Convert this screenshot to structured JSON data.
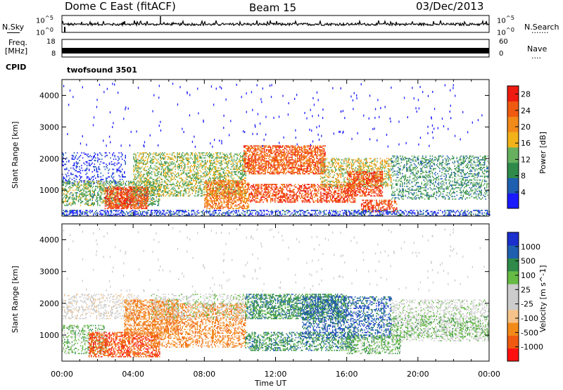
{
  "header": {
    "station": "Dome C East (fitACF)",
    "beam": "Beam 15",
    "date": "03/Dec/2013"
  },
  "strip": {
    "nsky_label": "N.Sky",
    "nsearch_label": "N.Search",
    "nsearch_dots": ".......",
    "freq_label_1": "Freq.",
    "freq_label_2": "[MHz]",
    "nave_label": "Nave",
    "nave_dots": "....",
    "cpid_label": "CPID",
    "cpid_value": "twofsound 3501",
    "noise_ticks_left": [
      "10^5",
      "10^0"
    ],
    "noise_ticks_right": [
      "10^5",
      "10^0"
    ],
    "freq_ticks": [
      "18",
      "8"
    ],
    "nave_ticks": [
      "60",
      "0"
    ]
  },
  "colors": {
    "power": [
      "#1a1aff",
      "#1f5fb0",
      "#2f8a4a",
      "#66b060",
      "#f2b21a",
      "#f28a1a",
      "#f05a10",
      "#ee1b10"
    ],
    "velocity": [
      "#ff1010",
      "#f05a10",
      "#f28a1a",
      "#f5c38a",
      "#cccccc",
      "#cccccc",
      "#66bb44",
      "#2f8a4a",
      "#1f5fb0",
      "#1a2fcc"
    ]
  },
  "chart_data": [
    {
      "type": "heatmap",
      "panel": "power",
      "xlabel": "",
      "ylabel": "Slant Range [km]",
      "ylim": [
        180,
        4500
      ],
      "xlim": [
        0,
        24
      ],
      "yticks": [
        "1000",
        "2000",
        "3000",
        "4000"
      ],
      "colorbar_label": "Power [dB]",
      "colorbar_ticks": [
        "4",
        "8",
        "12",
        "16",
        "20",
        "24",
        "28"
      ],
      "colorbar_range": [
        0,
        30
      ],
      "bands": [
        {
          "t0": 0.0,
          "t1": 3.6,
          "r0": 1200,
          "r1": 2200,
          "level": 2,
          "density": 0.22
        },
        {
          "t0": 0.0,
          "t1": 5.5,
          "r0": 500,
          "r1": 1300,
          "level": 12,
          "density": 0.45
        },
        {
          "t0": 2.4,
          "t1": 4.8,
          "r0": 400,
          "r1": 1100,
          "level": 26,
          "density": 0.7
        },
        {
          "t0": 4.0,
          "t1": 10.3,
          "r0": 800,
          "r1": 2200,
          "level": 14,
          "density": 0.45
        },
        {
          "t0": 8.0,
          "t1": 10.5,
          "r0": 400,
          "r1": 1300,
          "level": 22,
          "density": 0.6
        },
        {
          "t0": 10.2,
          "t1": 14.8,
          "r0": 1500,
          "r1": 2400,
          "level": 24,
          "density": 0.65
        },
        {
          "t0": 10.5,
          "t1": 16.5,
          "r0": 600,
          "r1": 1200,
          "level": 26,
          "density": 0.55
        },
        {
          "t0": 14.5,
          "t1": 18.5,
          "r0": 1100,
          "r1": 2000,
          "level": 16,
          "density": 0.45
        },
        {
          "t0": 16.0,
          "t1": 18.0,
          "r0": 800,
          "r1": 1600,
          "level": 26,
          "density": 0.6
        },
        {
          "t0": 16.8,
          "t1": 18.8,
          "r0": 300,
          "r1": 700,
          "level": 26,
          "density": 0.55
        },
        {
          "t0": 18.5,
          "t1": 24.0,
          "r0": 700,
          "r1": 2100,
          "level": 10,
          "density": 0.35
        },
        {
          "t0": 0.0,
          "t1": 24.0,
          "r0": 180,
          "r1": 380,
          "level": 4,
          "density": 0.45
        }
      ]
    },
    {
      "type": "heatmap",
      "panel": "velocity",
      "xlabel": "Time UT",
      "ylabel": "Slant Range [km]",
      "ylim": [
        180,
        4500
      ],
      "xlim": [
        0,
        24
      ],
      "xticks": [
        "00:00",
        "04:00",
        "08:00",
        "12:00",
        "16:00",
        "20:00",
        "00:00"
      ],
      "yticks": [
        "1000",
        "2000",
        "3000",
        "4000"
      ],
      "colorbar_label": "Velocity [m s^-1]",
      "colorbar_ticks": [
        "1000",
        "500",
        "100",
        "25",
        "-25",
        "-100",
        "-500",
        "-1000"
      ],
      "bands": [
        {
          "t0": 0.0,
          "t1": 4.5,
          "r0": 1500,
          "r1": 2300,
          "level": 4,
          "density": 0.3
        },
        {
          "t0": 0.0,
          "t1": 2.5,
          "r0": 400,
          "r1": 1300,
          "level": 6,
          "density": 0.35
        },
        {
          "t0": 1.5,
          "t1": 5.5,
          "r0": 300,
          "r1": 1100,
          "level": 1,
          "density": 0.6
        },
        {
          "t0": 3.5,
          "t1": 6.5,
          "r0": 1000,
          "r1": 2100,
          "level": 2,
          "density": 0.55
        },
        {
          "t0": 5.0,
          "t1": 10.3,
          "r0": 600,
          "r1": 2000,
          "level": 2,
          "density": 0.45
        },
        {
          "t0": 5.0,
          "t1": 10.3,
          "r0": 1500,
          "r1": 2300,
          "level": 5,
          "density": 0.3
        },
        {
          "t0": 10.3,
          "t1": 16.0,
          "r0": 1500,
          "r1": 2300,
          "level": 7,
          "density": 0.55
        },
        {
          "t0": 10.3,
          "t1": 16.5,
          "r0": 500,
          "r1": 1100,
          "level": 7,
          "density": 0.45
        },
        {
          "t0": 13.5,
          "t1": 18.5,
          "r0": 900,
          "r1": 2200,
          "level": 8,
          "density": 0.4
        },
        {
          "t0": 16.0,
          "t1": 19.0,
          "r0": 400,
          "r1": 1000,
          "level": 6,
          "density": 0.45
        },
        {
          "t0": 18.5,
          "t1": 24.0,
          "r0": 800,
          "r1": 2100,
          "level": 5,
          "density": 0.3
        },
        {
          "t0": 18.5,
          "t1": 24.0,
          "r0": 900,
          "r1": 1600,
          "level": 6,
          "density": 0.25
        }
      ]
    }
  ]
}
